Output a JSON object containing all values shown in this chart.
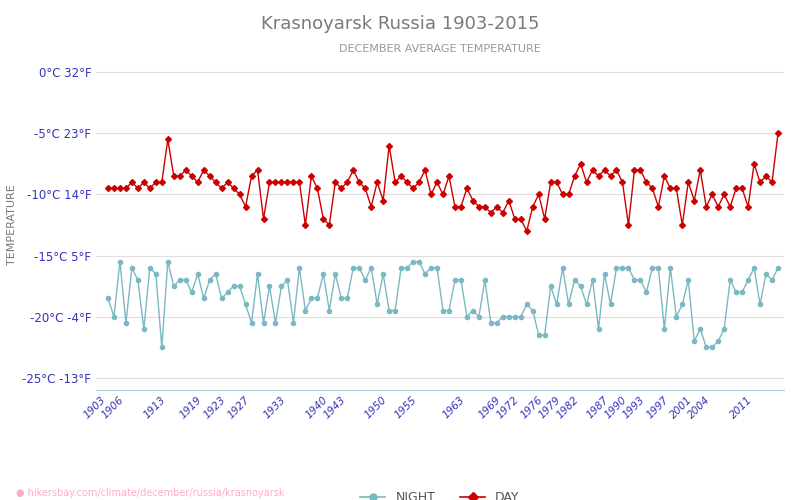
{
  "title": "Krasnoyarsk Russia 1903-2015",
  "subtitle": "DECEMBER AVERAGE TEMPERATURE",
  "ylabel": "TEMPERATURE",
  "xlabel_url": "hikersbay.com/climate/december/russia/krasnoyarsk",
  "legend_night": "NIGHT",
  "legend_day": "DAY",
  "ylim": [
    -26,
    1
  ],
  "yticks_c": [
    0,
    -5,
    -10,
    -15,
    -20,
    -25
  ],
  "yticks_f": [
    32,
    23,
    14,
    5,
    -4,
    -13
  ],
  "title_color": "#7a7a7a",
  "subtitle_color": "#999999",
  "ylabel_color": "#777777",
  "tick_label_color": "#3333bb",
  "grid_color": "#dddddd",
  "night_color": "#7ab8c2",
  "day_color": "#cc0000",
  "background_color": "#ffffff",
  "xtick_labels": [
    "1903",
    "1906",
    "1913",
    "1919",
    "1923",
    "1927",
    "1933",
    "1940",
    "1943",
    "1950",
    "1955",
    "1963",
    "1969",
    "1972",
    "1976",
    "1979",
    "1982",
    "1987",
    "1990",
    "1993",
    "1997",
    "2001",
    "2004",
    "2011"
  ],
  "years_night": [
    1903,
    1904,
    1905,
    1906,
    1907,
    1908,
    1909,
    1910,
    1911,
    1912,
    1913,
    1914,
    1915,
    1916,
    1917,
    1918,
    1919,
    1920,
    1921,
    1922,
    1923,
    1924,
    1925,
    1926,
    1927,
    1928,
    1929,
    1930,
    1931,
    1932,
    1933,
    1934,
    1935,
    1936,
    1937,
    1938,
    1939,
    1940,
    1941,
    1942,
    1943,
    1944,
    1945,
    1946,
    1947,
    1948,
    1949,
    1950,
    1951,
    1952,
    1953,
    1954,
    1955,
    1956,
    1957,
    1958,
    1959,
    1960,
    1961,
    1962,
    1963,
    1964,
    1965,
    1966,
    1967,
    1968,
    1969,
    1970,
    1971,
    1972,
    1973,
    1974,
    1975,
    1976,
    1977,
    1978,
    1979,
    1980,
    1981,
    1982,
    1983,
    1984,
    1985,
    1986,
    1987,
    1988,
    1989,
    1990,
    1991,
    1992,
    1993,
    1994,
    1995,
    1996,
    1997,
    1998,
    1999,
    2000,
    2001,
    2002,
    2003,
    2004,
    2005,
    2006,
    2007,
    2008,
    2009,
    2010,
    2011,
    2012,
    2013,
    2014,
    2015
  ],
  "night_vals": [
    -18.5,
    -20.0,
    -15.5,
    -20.5,
    -16.0,
    -17.0,
    -21.0,
    -16.0,
    -16.5,
    -22.5,
    -15.5,
    -17.5,
    -17.0,
    -17.0,
    -18.0,
    -16.5,
    -18.5,
    -17.0,
    -16.5,
    -18.5,
    -18.0,
    -17.5,
    -17.5,
    -19.0,
    -20.5,
    -16.5,
    -20.5,
    -17.5,
    -20.5,
    -17.5,
    -17.0,
    -20.5,
    -16.0,
    -19.5,
    -18.5,
    -18.5,
    -16.5,
    -19.5,
    -16.5,
    -18.5,
    -18.5,
    -16.0,
    -16.0,
    -17.0,
    -16.0,
    -19.0,
    -16.5,
    -19.5,
    -19.5,
    -16.0,
    -16.0,
    -15.5,
    -15.5,
    -16.5,
    -16.0,
    -16.0,
    -19.5,
    -19.5,
    -17.0,
    -17.0,
    -20.0,
    -19.5,
    -20.0,
    -17.0,
    -20.5,
    -20.5,
    -20.0,
    -20.0,
    -20.0,
    -20.0,
    -19.0,
    -19.5,
    -21.5,
    -21.5,
    -17.5,
    -19.0,
    -16.0,
    -19.0,
    -17.0,
    -17.5,
    -19.0,
    -17.0,
    -21.0,
    -16.5,
    -19.0,
    -16.0,
    -16.0,
    -16.0,
    -17.0,
    -17.0,
    -18.0,
    -16.0,
    -16.0,
    -21.0,
    -16.0,
    -20.0,
    -19.0,
    -17.0,
    -22.0,
    -21.0,
    -22.5,
    -22.5,
    -22.0,
    -21.0,
    -17.0,
    -18.0,
    -18.0,
    -17.0,
    -16.0,
    -19.0,
    -16.5,
    -17.0,
    -16.0
  ],
  "years_day": [
    1903,
    1904,
    1905,
    1906,
    1907,
    1908,
    1909,
    1910,
    1911,
    1912,
    1913,
    1914,
    1915,
    1916,
    1917,
    1918,
    1919,
    1920,
    1921,
    1922,
    1923,
    1924,
    1925,
    1926,
    1927,
    1928,
    1929,
    1930,
    1931,
    1932,
    1933,
    1934,
    1935,
    1936,
    1937,
    1938,
    1939,
    1940,
    1941,
    1942,
    1943,
    1944,
    1945,
    1946,
    1947,
    1948,
    1949,
    1950,
    1951,
    1952,
    1953,
    1954,
    1955,
    1956,
    1957,
    1958,
    1959,
    1960,
    1961,
    1962,
    1963,
    1964,
    1965,
    1966,
    1967,
    1968,
    1969,
    1970,
    1971,
    1972,
    1973,
    1974,
    1975,
    1976,
    1977,
    1978,
    1979,
    1980,
    1981,
    1982,
    1983,
    1984,
    1985,
    1986,
    1987,
    1988,
    1989,
    1990,
    1991,
    1992,
    1993,
    1994,
    1995,
    1996,
    1997,
    1998,
    1999,
    2000,
    2001,
    2002,
    2003,
    2004,
    2005,
    2006,
    2007,
    2008,
    2009,
    2010,
    2011,
    2012,
    2013,
    2014,
    2015
  ],
  "day_vals": [
    -9.5,
    -9.5,
    -9.5,
    -9.5,
    -9.0,
    -9.5,
    -9.0,
    -9.5,
    -9.0,
    -9.0,
    -5.5,
    -8.5,
    -8.5,
    -8.0,
    -8.5,
    -9.0,
    -8.0,
    -8.5,
    -9.0,
    -9.5,
    -9.0,
    -9.5,
    -10.0,
    -11.0,
    -8.5,
    -8.0,
    -12.0,
    -9.0,
    -9.0,
    -9.0,
    -9.0,
    -9.0,
    -9.0,
    -12.5,
    -8.5,
    -9.5,
    -12.0,
    -12.5,
    -9.0,
    -9.5,
    -9.0,
    -8.0,
    -9.0,
    -9.5,
    -11.0,
    -9.0,
    -10.5,
    -6.0,
    -9.0,
    -8.5,
    -9.0,
    -9.5,
    -9.0,
    -8.0,
    -10.0,
    -9.0,
    -10.0,
    -8.5,
    -11.0,
    -11.0,
    -9.5,
    -10.5,
    -11.0,
    -11.0,
    -11.5,
    -11.0,
    -11.5,
    -10.5,
    -12.0,
    -12.0,
    -13.0,
    -11.0,
    -10.0,
    -12.0,
    -9.0,
    -9.0,
    -10.0,
    -10.0,
    -8.5,
    -7.5,
    -9.0,
    -8.0,
    -8.5,
    -8.0,
    -8.5,
    -8.0,
    -9.0,
    -12.5,
    -8.0,
    -8.0,
    -9.0,
    -9.5,
    -11.0,
    -8.5,
    -9.5,
    -9.5,
    -12.5,
    -9.0,
    -10.5,
    -8.0,
    -11.0,
    -10.0,
    -11.0,
    -10.0,
    -11.0,
    -9.5,
    -9.5,
    -11.0,
    -7.5,
    -9.0,
    -8.5,
    -9.0,
    -5.0
  ]
}
